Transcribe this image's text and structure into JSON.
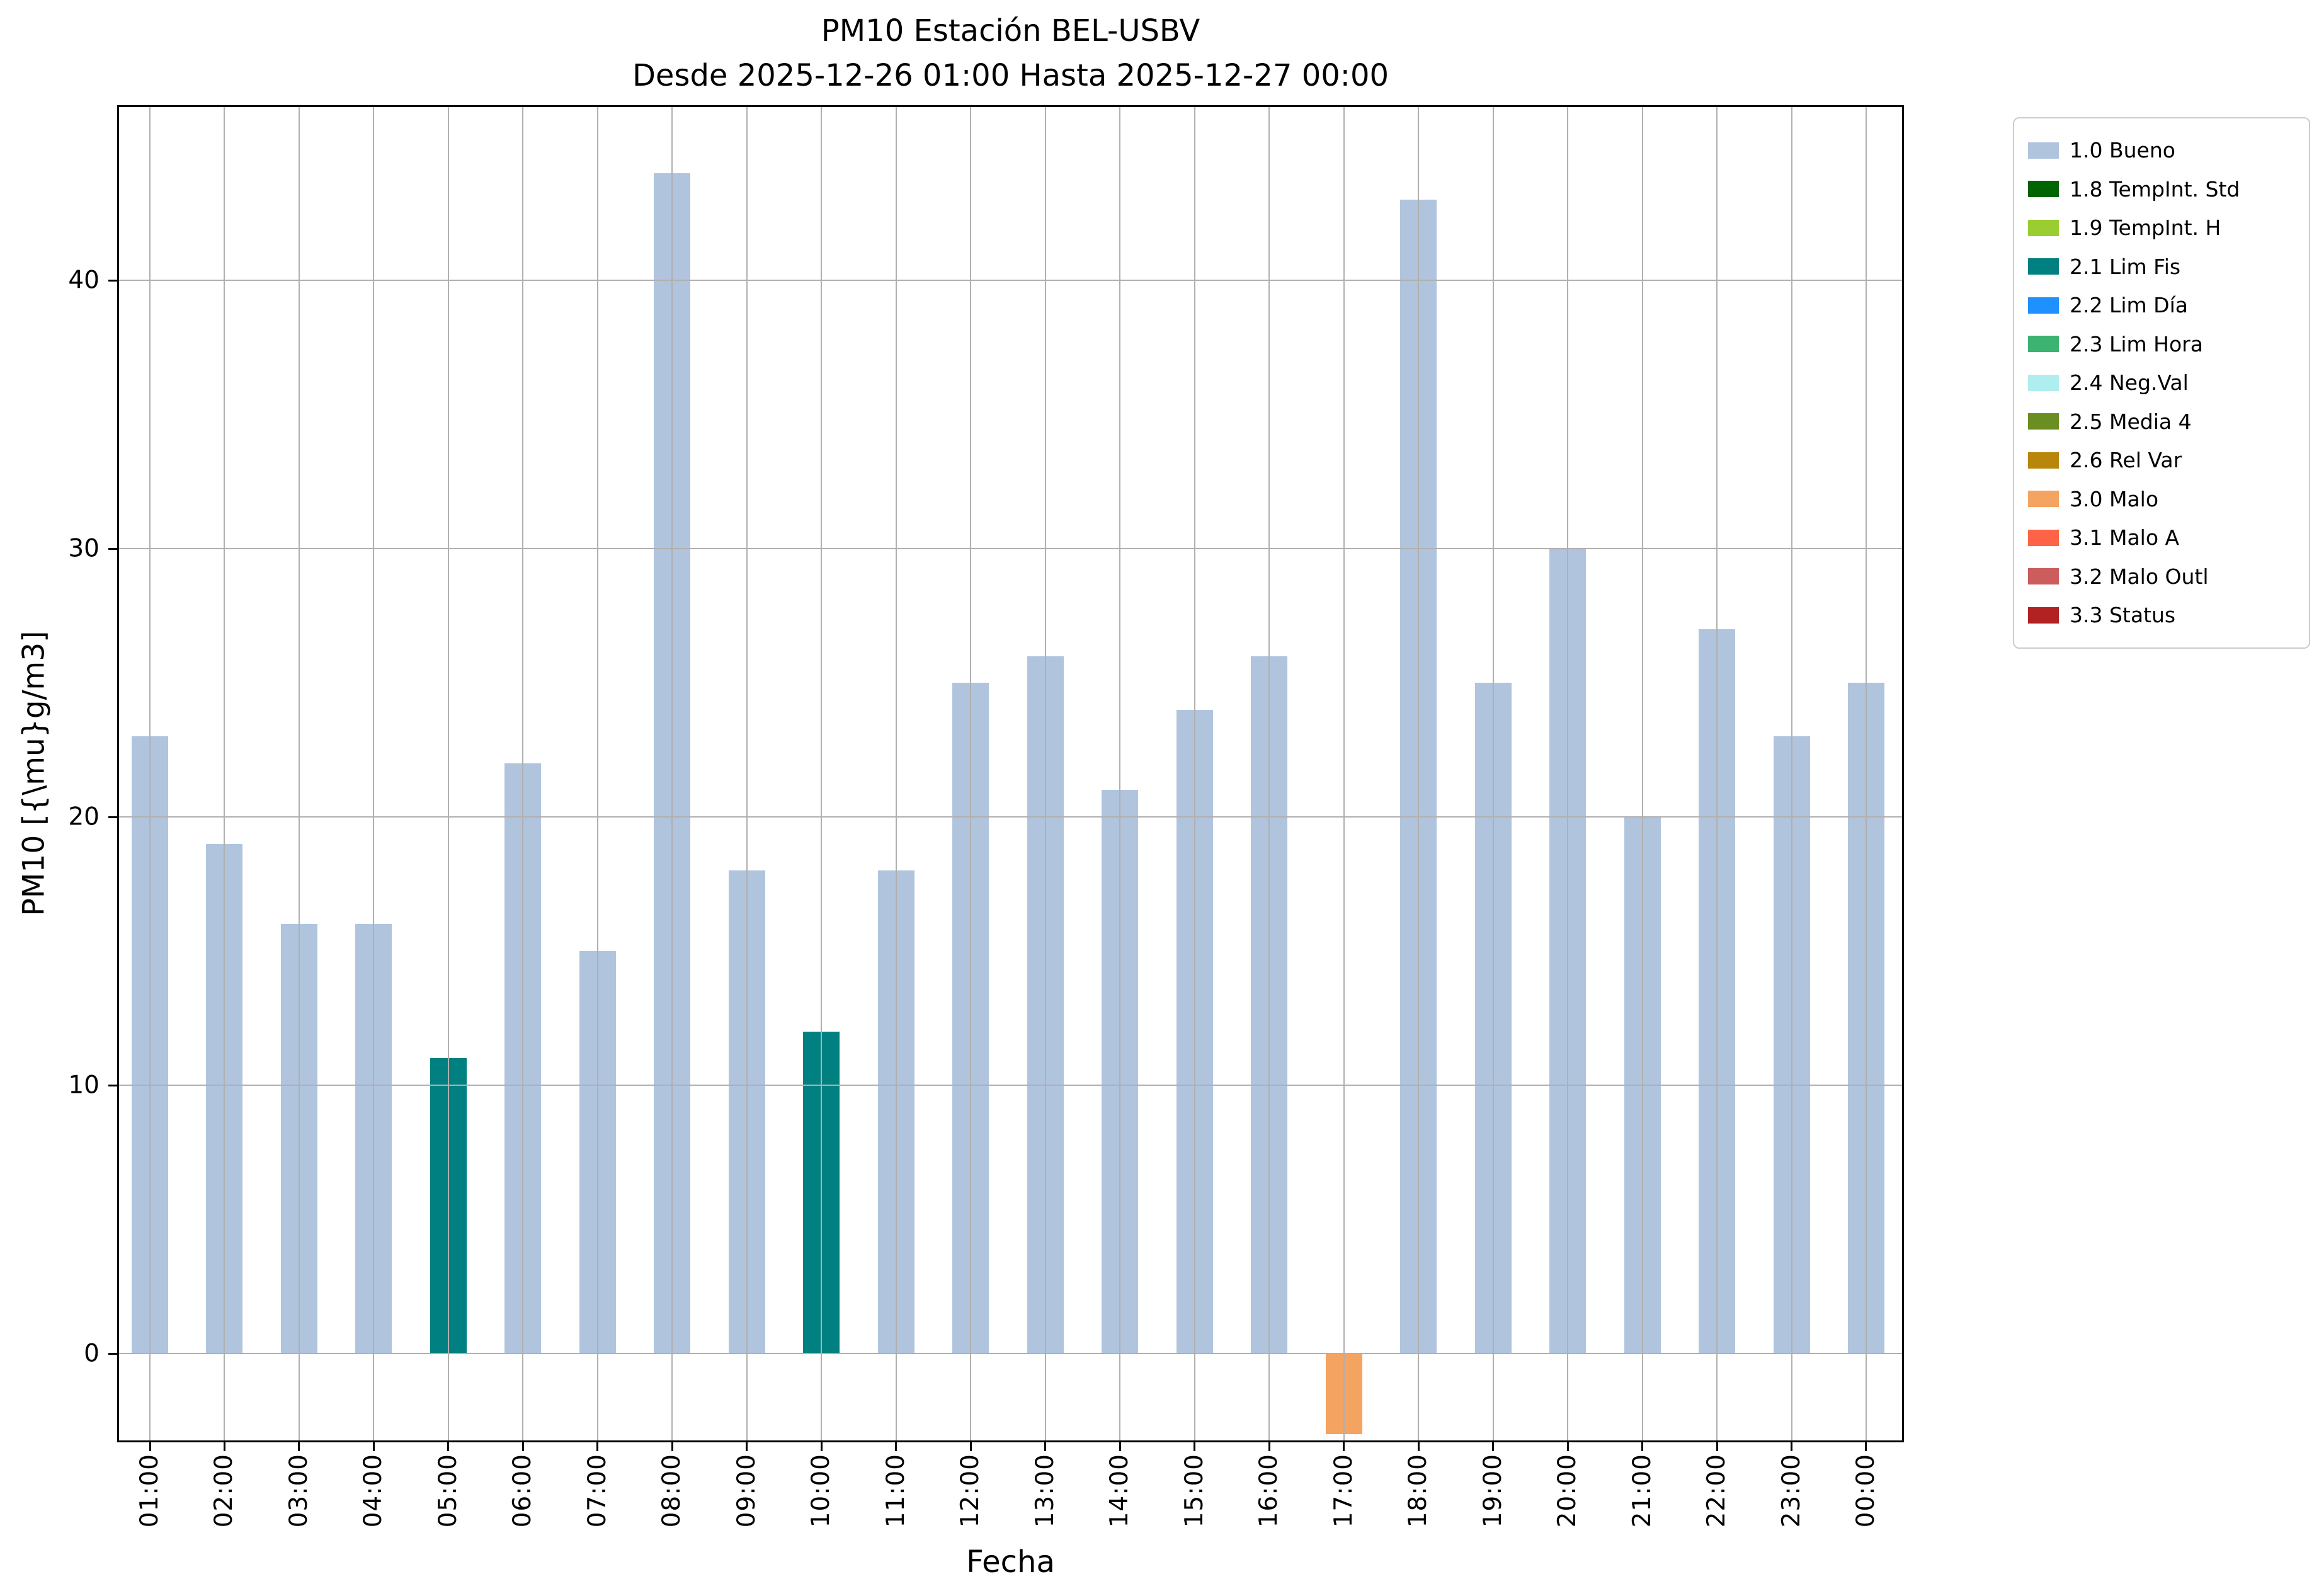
{
  "chart_data": {
    "type": "bar",
    "title": "PM10 Estación BEL-USBV",
    "subtitle": "Desde 2025-12-26 01:00 Hasta 2025-12-27 00:00",
    "xlabel": "Fecha",
    "ylabel": "PM10 [{\\mu}g/m3]",
    "categories": [
      "01:00",
      "02:00",
      "03:00",
      "04:00",
      "05:00",
      "06:00",
      "07:00",
      "08:00",
      "09:00",
      "10:00",
      "11:00",
      "12:00",
      "13:00",
      "14:00",
      "15:00",
      "16:00",
      "17:00",
      "18:00",
      "19:00",
      "20:00",
      "21:00",
      "22:00",
      "23:00",
      "00:00"
    ],
    "values": [
      23,
      19,
      16,
      16,
      11,
      22,
      15,
      44,
      18,
      12,
      18,
      25,
      26,
      21,
      24,
      26,
      -3,
      43,
      25,
      30,
      20,
      27,
      23,
      25
    ],
    "bar_status": [
      "1.0",
      "1.0",
      "1.0",
      "1.0",
      "2.1",
      "1.0",
      "1.0",
      "1.0",
      "1.0",
      "2.1",
      "1.0",
      "1.0",
      "1.0",
      "1.0",
      "1.0",
      "1.0",
      "3.0",
      "1.0",
      "1.0",
      "1.0",
      "1.0",
      "1.0",
      "1.0",
      "1.0"
    ],
    "yticks": [
      0,
      10,
      20,
      30,
      40
    ],
    "ylim": [
      -3.31,
      46.53
    ],
    "grid": true,
    "grid_color": "#b0b0b0",
    "legend": {
      "position": "outside-top-right",
      "entries": [
        {
          "key": "1.0",
          "label": "1.0 Bueno",
          "color": "#b0c4de"
        },
        {
          "key": "1.8",
          "label": "1.8 TempInt. Std",
          "color": "#006400"
        },
        {
          "key": "1.9",
          "label": "1.9 TempInt. H",
          "color": "#9acd32"
        },
        {
          "key": "2.1",
          "label": "2.1 Lim Fis",
          "color": "#008080"
        },
        {
          "key": "2.2",
          "label": "2.2 Lim Día",
          "color": "#1e90ff"
        },
        {
          "key": "2.3",
          "label": "2.3 Lim Hora",
          "color": "#3cb371"
        },
        {
          "key": "2.4",
          "label": "2.4 Neg.Val",
          "color": "#afeeee"
        },
        {
          "key": "2.5",
          "label": "2.5 Media 4",
          "color": "#6b8e23"
        },
        {
          "key": "2.6",
          "label": "2.6 Rel Var",
          "color": "#b8860b"
        },
        {
          "key": "3.0",
          "label": "3.0 Malo",
          "color": "#f4a460"
        },
        {
          "key": "3.1",
          "label": "3.1 Malo A",
          "color": "#ff6347"
        },
        {
          "key": "3.2",
          "label": "3.2 Malo Outl",
          "color": "#cd5c5c"
        },
        {
          "key": "3.3",
          "label": "3.3 Status",
          "color": "#b22222"
        }
      ]
    }
  }
}
